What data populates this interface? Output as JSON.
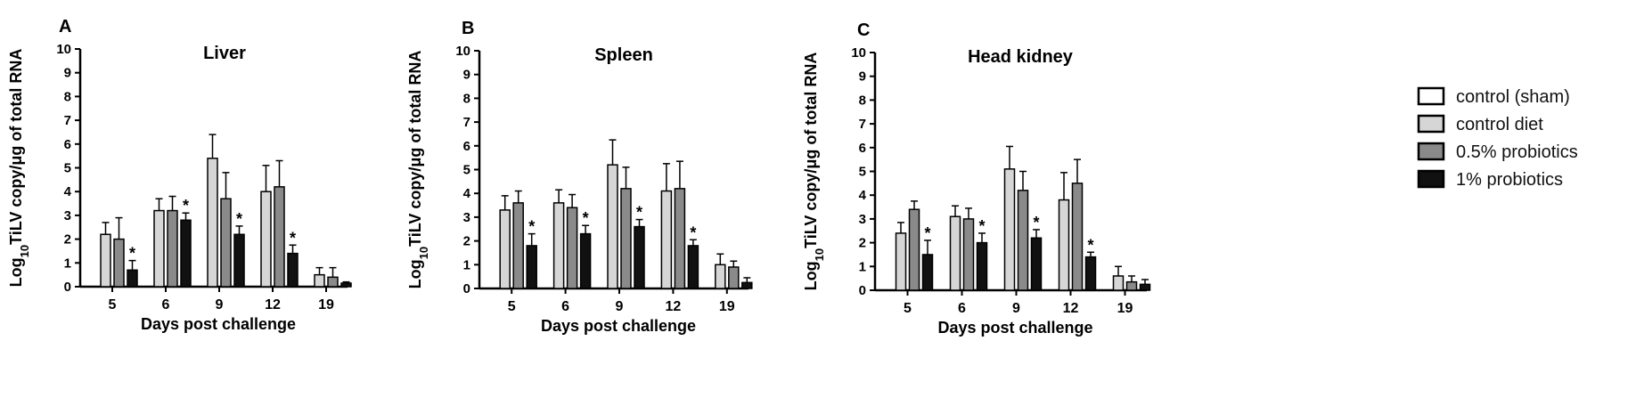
{
  "legend": {
    "placement": "right",
    "items": [
      {
        "label": "control (sham)",
        "color": "#ffffff"
      },
      {
        "label": "control diet",
        "color": "#d6d6d6"
      },
      {
        "label": "0.5% probiotics",
        "color": "#8a8a8a"
      },
      {
        "label": "1% probiotics",
        "color": "#111111"
      }
    ]
  },
  "chart_data": [
    {
      "panel": "A",
      "type": "bar",
      "title": "Liver",
      "xlabel": "Days post challenge",
      "ylabel_prefix": "Log",
      "ylabel_sub": "10",
      "ylabel_suffix": "TiLV copy/μg of total RNA",
      "ylim": [
        0,
        10
      ],
      "yticks": [
        0,
        1,
        2,
        3,
        4,
        5,
        6,
        7,
        8,
        9,
        10
      ],
      "categories": [
        "5",
        "6",
        "9",
        "12",
        "19"
      ],
      "series": [
        {
          "name": "control (sham)",
          "values": [
            null,
            null,
            null,
            null,
            null
          ],
          "errors": [
            null,
            null,
            null,
            null,
            null
          ]
        },
        {
          "name": "control diet",
          "values": [
            2.2,
            3.2,
            5.4,
            4.0,
            0.5
          ],
          "errors": [
            0.5,
            0.5,
            1.0,
            1.1,
            0.3
          ]
        },
        {
          "name": "0.5% probiotics",
          "values": [
            2.0,
            3.2,
            3.7,
            4.2,
            0.4
          ],
          "errors": [
            0.9,
            0.6,
            1.1,
            1.1,
            0.4
          ]
        },
        {
          "name": "1% probiotics",
          "values": [
            0.7,
            2.8,
            2.2,
            1.4,
            0.15
          ],
          "errors": [
            0.4,
            0.3,
            0.35,
            0.35,
            0.05
          ]
        }
      ],
      "significance": [
        true,
        true,
        true,
        true,
        false
      ]
    },
    {
      "panel": "B",
      "type": "bar",
      "title": "Spleen",
      "xlabel": "Days post challenge",
      "ylabel_prefix": "Log",
      "ylabel_sub": "10",
      "ylabel_suffix": "TiLV copy/μg of total RNA",
      "ylim": [
        0,
        10
      ],
      "yticks": [
        0,
        1,
        2,
        3,
        4,
        5,
        6,
        7,
        8,
        9,
        10
      ],
      "categories": [
        "5",
        "6",
        "9",
        "12",
        "19"
      ],
      "series": [
        {
          "name": "control (sham)",
          "values": [
            null,
            null,
            null,
            null,
            null
          ],
          "errors": [
            null,
            null,
            null,
            null,
            null
          ]
        },
        {
          "name": "control diet",
          "values": [
            3.3,
            3.6,
            5.2,
            4.1,
            1.0
          ],
          "errors": [
            0.6,
            0.55,
            1.05,
            1.15,
            0.45
          ]
        },
        {
          "name": "0.5% probiotics",
          "values": [
            3.6,
            3.4,
            4.2,
            4.2,
            0.9
          ],
          "errors": [
            0.5,
            0.55,
            0.9,
            1.15,
            0.25
          ]
        },
        {
          "name": "1% probiotics",
          "values": [
            1.8,
            2.3,
            2.6,
            1.8,
            0.25
          ],
          "errors": [
            0.5,
            0.35,
            0.3,
            0.25,
            0.2
          ]
        }
      ],
      "significance": [
        true,
        true,
        true,
        true,
        false
      ]
    },
    {
      "panel": "C",
      "type": "bar",
      "title": "Head kidney",
      "xlabel": "Days post challenge",
      "ylabel_prefix": "Log",
      "ylabel_sub": "10",
      "ylabel_suffix": "TiLV copy/μg of total RNA",
      "ylim": [
        0,
        10
      ],
      "yticks": [
        0,
        1,
        2,
        3,
        4,
        5,
        6,
        7,
        8,
        9,
        10
      ],
      "categories": [
        "5",
        "6",
        "9",
        "12",
        "19"
      ],
      "series": [
        {
          "name": "control (sham)",
          "values": [
            null,
            null,
            null,
            null,
            null
          ],
          "errors": [
            null,
            null,
            null,
            null,
            null
          ]
        },
        {
          "name": "control diet",
          "values": [
            2.4,
            3.1,
            5.1,
            3.8,
            0.6
          ],
          "errors": [
            0.45,
            0.45,
            0.95,
            1.15,
            0.4
          ]
        },
        {
          "name": "0.5% probiotics",
          "values": [
            3.4,
            3.0,
            4.2,
            4.5,
            0.35
          ],
          "errors": [
            0.35,
            0.45,
            0.8,
            1.0,
            0.25
          ]
        },
        {
          "name": "1% probiotics",
          "values": [
            1.5,
            2.0,
            2.2,
            1.4,
            0.25
          ],
          "errors": [
            0.6,
            0.4,
            0.35,
            0.2,
            0.2
          ]
        }
      ],
      "significance": [
        true,
        true,
        true,
        true,
        false
      ]
    }
  ]
}
